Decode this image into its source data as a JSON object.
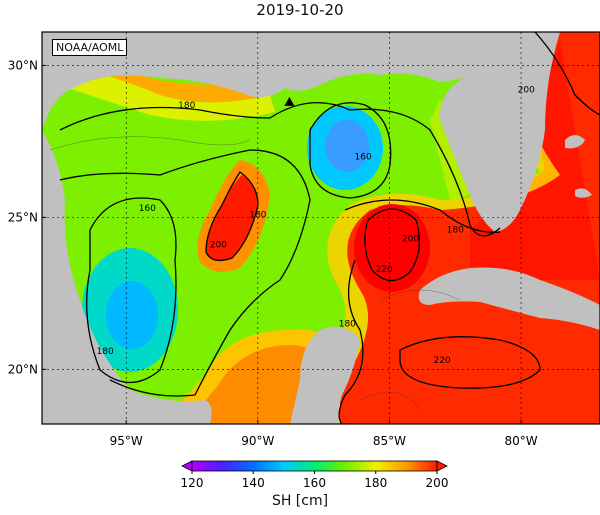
{
  "map": {
    "title": "2019-10-20",
    "credit": "NOAA/AOML",
    "lat_ticks": [
      {
        "value": 30,
        "label": "30°N"
      },
      {
        "value": 25,
        "label": "25°N"
      },
      {
        "value": 20,
        "label": "20°N"
      }
    ],
    "lon_ticks": [
      {
        "value": -95,
        "label": "95°W"
      },
      {
        "value": -90,
        "label": "90°W"
      },
      {
        "value": -85,
        "label": "85°W"
      },
      {
        "value": -80,
        "label": "80°W"
      }
    ],
    "contour_labels": [
      {
        "text": "180",
        "lon": -92.7,
        "lat": 28.7
      },
      {
        "text": "160",
        "lon": -86.0,
        "lat": 27.0
      },
      {
        "text": "160",
        "lon": -94.2,
        "lat": 25.3
      },
      {
        "text": "180",
        "lon": -90.0,
        "lat": 25.1
      },
      {
        "text": "200",
        "lon": -91.5,
        "lat": 24.1
      },
      {
        "text": "180",
        "lon": -95.8,
        "lat": 20.6
      },
      {
        "text": "200",
        "lon": -84.2,
        "lat": 24.3
      },
      {
        "text": "220",
        "lon": -85.2,
        "lat": 23.3
      },
      {
        "text": "180",
        "lon": -82.5,
        "lat": 24.6
      },
      {
        "text": "180",
        "lon": -86.6,
        "lat": 21.5
      },
      {
        "text": "220",
        "lon": -83.0,
        "lat": 20.3
      },
      {
        "text": "200",
        "lon": -79.8,
        "lat": 29.2
      }
    ],
    "marker": {
      "type": "triangle",
      "lon": -88.8,
      "lat": 28.8
    },
    "colorbar": {
      "label": "SH [cm]",
      "min": 120,
      "max": 200,
      "ticks": [
        "120",
        "140",
        "160",
        "180",
        "200"
      ],
      "stops": [
        {
          "value": 120,
          "color": "#b400ff"
        },
        {
          "value": 130,
          "color": "#4a1fff"
        },
        {
          "value": 140,
          "color": "#0070ff"
        },
        {
          "value": 150,
          "color": "#00c8ff"
        },
        {
          "value": 160,
          "color": "#00ee70"
        },
        {
          "value": 170,
          "color": "#6ef000"
        },
        {
          "value": 180,
          "color": "#f0f000"
        },
        {
          "value": 190,
          "color": "#ff9a00"
        },
        {
          "value": 200,
          "color": "#ff1a00"
        }
      ]
    },
    "colors": {
      "land": "#c0c0c0",
      "warm": "#ff1a00",
      "cold": "#00c8ff",
      "mid": "#6ef000"
    }
  }
}
